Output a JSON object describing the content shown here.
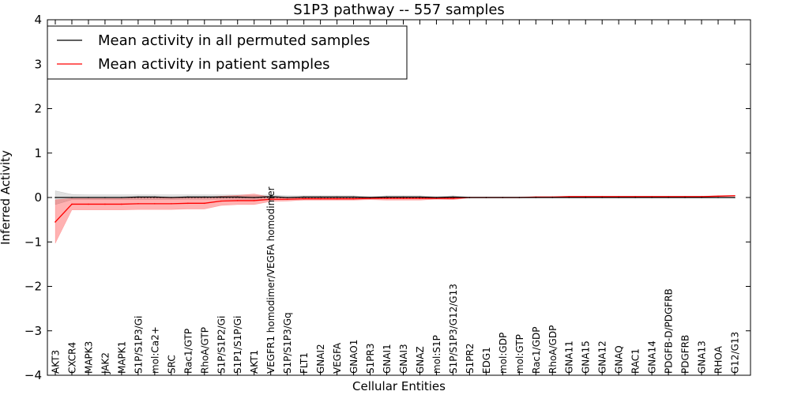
{
  "chart_data": {
    "type": "line",
    "title": "S1P3 pathway -- 557 samples",
    "xlabel": "Cellular Entities",
    "ylabel": "Inferred Activity",
    "ylim": [
      -4,
      4
    ],
    "yticks": [
      -4,
      -3,
      -2,
      -1,
      0,
      1,
      2,
      3,
      4
    ],
    "ytick_labels": [
      "−4",
      "−3",
      "−2",
      "−1",
      "0",
      "1",
      "2",
      "3",
      "4"
    ],
    "legend_location": "top-left",
    "categories": [
      "AKT3",
      "CXCR4",
      "MAPK3",
      "JAK2",
      "MAPK1",
      "S1P/S1P3/Gi",
      "mol:Ca2+",
      "SRC",
      "Rac1/GTP",
      "RhoA/GTP",
      "S1P/S1P2/Gi",
      "S1P1/S1P/Gi",
      "AKT1",
      "VEGFR1 homodimer/VEGFA homodimer",
      "S1P/S1P3/Gq",
      "FLT1",
      "GNAI2",
      "VEGFA",
      "GNAO1",
      "S1PR3",
      "GNAI1",
      "GNAI3",
      "GNAZ",
      "mol:S1P",
      "S1P/S1P3/G12/G13",
      "S1PR2",
      "EDG1",
      "mol:GDP",
      "mol:GTP",
      "Rac1/GDP",
      "RhoA/GDP",
      "GNA11",
      "GNA15",
      "GNA12",
      "GNAQ",
      "RAC1",
      "GNA14",
      "PDGFB-D/PDGFRB",
      "PDGFRB",
      "GNA13",
      "RHOA",
      "G12/G13"
    ],
    "series": [
      {
        "name": "Mean activity in all permuted samples",
        "color": "#000000",
        "values": [
          0.0,
          0.0,
          0.0,
          0.0,
          0.0,
          0.01,
          0.01,
          0.0,
          0.01,
          0.01,
          0.01,
          0.01,
          0.0,
          0.02,
          0.0,
          0.01,
          0.01,
          0.01,
          0.01,
          0.0,
          0.01,
          0.01,
          0.01,
          0.0,
          0.01,
          0.0,
          0.0,
          0.0,
          0.0,
          0.0,
          0.0,
          0.0,
          0.0,
          0.0,
          0.0,
          0.0,
          0.0,
          0.0,
          0.0,
          0.0,
          0.0,
          0.0
        ],
        "lower": [
          -0.16,
          -0.05,
          -0.05,
          -0.05,
          -0.05,
          -0.05,
          -0.05,
          -0.05,
          -0.04,
          -0.04,
          -0.04,
          -0.04,
          -0.05,
          -0.03,
          -0.04,
          -0.02,
          -0.02,
          -0.02,
          -0.02,
          -0.02,
          -0.02,
          -0.02,
          -0.02,
          -0.02,
          -0.02,
          -0.01,
          -0.01,
          -0.01,
          -0.01,
          -0.01,
          -0.01,
          -0.01,
          -0.01,
          -0.01,
          -0.01,
          -0.01,
          -0.01,
          -0.01,
          -0.01,
          -0.01,
          -0.01,
          -0.01
        ],
        "upper": [
          0.15,
          0.07,
          0.06,
          0.06,
          0.06,
          0.06,
          0.06,
          0.06,
          0.06,
          0.06,
          0.06,
          0.06,
          0.05,
          0.06,
          0.04,
          0.04,
          0.04,
          0.04,
          0.04,
          0.02,
          0.04,
          0.04,
          0.04,
          0.02,
          0.04,
          0.01,
          0.01,
          0.01,
          0.01,
          0.01,
          0.01,
          0.01,
          0.01,
          0.01,
          0.01,
          0.01,
          0.01,
          0.01,
          0.01,
          0.01,
          0.01,
          0.01
        ]
      },
      {
        "name": "Mean activity in patient samples",
        "color": "#ff0000",
        "values": [
          -0.55,
          -0.15,
          -0.15,
          -0.15,
          -0.15,
          -0.14,
          -0.14,
          -0.14,
          -0.13,
          -0.13,
          -0.08,
          -0.07,
          -0.07,
          -0.04,
          -0.04,
          -0.03,
          -0.03,
          -0.03,
          -0.03,
          -0.02,
          -0.02,
          -0.02,
          -0.02,
          -0.02,
          -0.02,
          0.0,
          0.0,
          0.0,
          0.0,
          0.01,
          0.01,
          0.02,
          0.02,
          0.02,
          0.02,
          0.02,
          0.02,
          0.02,
          0.02,
          0.02,
          0.03,
          0.04
        ],
        "lower": [
          -1.03,
          -0.28,
          -0.28,
          -0.28,
          -0.28,
          -0.27,
          -0.27,
          -0.27,
          -0.26,
          -0.26,
          -0.18,
          -0.16,
          -0.16,
          -0.09,
          -0.08,
          -0.06,
          -0.06,
          -0.06,
          -0.06,
          -0.05,
          -0.06,
          -0.06,
          -0.06,
          -0.04,
          -0.05,
          -0.01,
          -0.01,
          -0.01,
          -0.01,
          0.0,
          0.0,
          0.01,
          0.01,
          0.01,
          0.01,
          0.01,
          0.01,
          0.01,
          0.01,
          0.01,
          0.02,
          0.03
        ],
        "upper": [
          -0.05,
          -0.02,
          -0.02,
          -0.02,
          -0.02,
          -0.01,
          -0.01,
          -0.01,
          0.0,
          0.0,
          0.03,
          0.05,
          0.08,
          0.01,
          0.0,
          0.0,
          0.0,
          0.0,
          0.0,
          0.01,
          0.01,
          0.01,
          0.01,
          0.0,
          0.0,
          0.01,
          0.01,
          0.01,
          0.01,
          0.02,
          0.02,
          0.03,
          0.03,
          0.03,
          0.03,
          0.03,
          0.03,
          0.03,
          0.03,
          0.03,
          0.04,
          0.05
        ]
      }
    ],
    "reference_line": {
      "y": 0,
      "style": "dotted"
    }
  }
}
